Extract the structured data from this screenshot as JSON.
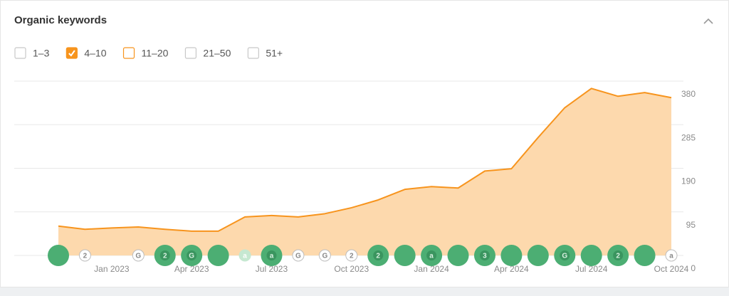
{
  "chart_data": {
    "type": "line",
    "title": "Organic keywords",
    "legend_items": [
      {
        "label": "1–3",
        "state": "unchecked"
      },
      {
        "label": "4–10",
        "state": "checked"
      },
      {
        "label": "11–20",
        "state": "outlined"
      },
      {
        "label": "21–50",
        "state": "unchecked"
      },
      {
        "label": "51+",
        "state": "unchecked"
      }
    ],
    "categories": [
      null,
      null,
      "Jan 2023",
      null,
      null,
      "Apr 2023",
      null,
      null,
      "Jul 2023",
      null,
      null,
      "Oct 2023",
      null,
      null,
      "Jan 2024",
      null,
      null,
      "Apr 2024",
      null,
      null,
      "Jul 2024",
      null,
      null,
      "Oct 2024"
    ],
    "series": [
      {
        "name": "4–10",
        "color": "#f7941d",
        "fill": "#fdd9ad",
        "values": [
          64,
          57,
          60,
          62,
          57,
          53,
          53,
          84,
          87,
          84,
          91,
          104,
          121,
          144,
          150,
          147,
          184,
          189,
          257,
          322,
          364,
          347,
          355,
          344
        ]
      }
    ],
    "ylim": [
      0,
      380
    ],
    "yticks": [
      0,
      95,
      190,
      285,
      380
    ],
    "grid": true,
    "axis_side": "right",
    "markers": [
      {
        "style": "major"
      },
      {
        "style": "minor",
        "label": "2"
      },
      null,
      {
        "style": "minor",
        "label": "G"
      },
      {
        "style": "major",
        "label": "2"
      },
      {
        "style": "major",
        "label": "G"
      },
      {
        "style": "major"
      },
      {
        "style": "faint",
        "label": "a"
      },
      {
        "style": "major",
        "label": "a"
      },
      {
        "style": "minor",
        "label": "G"
      },
      {
        "style": "minor",
        "label": "G"
      },
      {
        "style": "minor",
        "label": "2"
      },
      {
        "style": "major",
        "label": "2"
      },
      {
        "style": "major"
      },
      {
        "style": "major",
        "label": "a"
      },
      {
        "style": "major"
      },
      {
        "style": "major",
        "label": "3"
      },
      {
        "style": "major"
      },
      {
        "style": "major"
      },
      {
        "style": "major",
        "label": "G"
      },
      {
        "style": "major"
      },
      {
        "style": "major",
        "label": "2"
      },
      {
        "style": "major"
      },
      {
        "style": "minor",
        "label": "a"
      }
    ]
  }
}
